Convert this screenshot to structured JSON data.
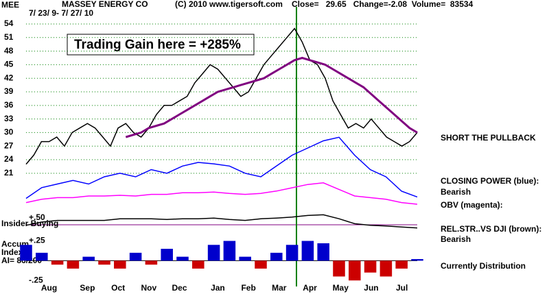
{
  "chart_data": [
    {
      "type": "line",
      "symbol": "MEE",
      "title": "MASSEY ENERGY CO",
      "date_range": "7/ 23/ 9- 7/ 27/ 10",
      "copyright": "(C) 2010 www.tigersoft.com",
      "close_info": "Close=   29.65   Change=-2.08  Volume=  83534",
      "gain_note": "Trading Gain here = +285%",
      "annotations": [
        "SHORT THE PULLBACK",
        "CLOSING POWER (blue):",
        "Bearish",
        "OBV (magenta):",
        "REL.STR..VS DJI (brown):",
        "Bearish",
        "Currently Distribution",
        "Insider Buying",
        "+.50",
        "Accum",
        "Index",
        "AI= 86/200"
      ],
      "categories": [
        null,
        null,
        null,
        "Aug",
        null,
        null,
        null,
        null,
        "Sep",
        null,
        null,
        null,
        "Oct",
        null,
        null,
        null,
        "Nov",
        null,
        null,
        null,
        "Dec",
        null,
        null,
        null,
        null,
        "Jan",
        null,
        null,
        null,
        "Feb",
        null,
        null,
        null,
        "Mar",
        null,
        null,
        null,
        "Apr",
        null,
        null,
        null,
        "May",
        null,
        null,
        null,
        "Jun",
        null,
        null,
        null,
        "Jul",
        null,
        null
      ],
      "series": [
        {
          "color": "#000000",
          "values": [
            23,
            25,
            28,
            28,
            29,
            27,
            30,
            31,
            32,
            31,
            29,
            27,
            31,
            32,
            30,
            29,
            31,
            34,
            36,
            36,
            37,
            38,
            41,
            43,
            45,
            44,
            42,
            40,
            38,
            39,
            42,
            45,
            47,
            49,
            51,
            53,
            50,
            46,
            45,
            42,
            37,
            34,
            31,
            32,
            31,
            33,
            31,
            29,
            28,
            27,
            28,
            30
          ]
        },
        {
          "color": "#800080",
          "values": [
            null,
            null,
            null,
            null,
            null,
            null,
            null,
            null,
            null,
            null,
            null,
            null,
            null,
            29,
            29.5,
            30,
            31,
            31.5,
            32,
            33,
            34,
            35,
            36,
            37,
            38,
            39,
            39.5,
            40,
            40.5,
            41,
            41.5,
            42,
            43,
            44,
            45,
            46,
            46.5,
            46,
            45.5,
            45,
            44,
            43,
            42,
            41,
            40,
            38.5,
            37,
            35.5,
            34,
            32.5,
            31,
            30
          ]
        }
      ],
      "ylim": [
        18.4,
        59.3
      ],
      "yticks": [
        21,
        24,
        27,
        30,
        33,
        36,
        39,
        42,
        45,
        48,
        51,
        54
      ],
      "grid": true
    },
    {
      "type": "line",
      "color": "#0000ff",
      "ylim": [
        0,
        100
      ],
      "values": [
        10,
        25,
        30,
        35,
        30,
        40,
        45,
        40,
        50,
        45,
        55,
        60,
        58,
        55,
        45,
        40,
        55,
        70,
        80,
        90,
        95,
        70,
        50,
        40,
        20,
        12
      ]
    },
    {
      "type": "line",
      "color": "#ff00ff",
      "ylim": [
        0,
        100
      ],
      "values": [
        30,
        40,
        45,
        45,
        50,
        50,
        52,
        50,
        55,
        55,
        60,
        60,
        62,
        58,
        55,
        58,
        65,
        75,
        85,
        90,
        70,
        50,
        45,
        40,
        30,
        25
      ]
    },
    {
      "type": "line",
      "color": "#000000",
      "ylim": [
        0,
        100
      ],
      "values": [
        40,
        50,
        55,
        55,
        55,
        55,
        60,
        60,
        60,
        58,
        60,
        60,
        62,
        58,
        55,
        60,
        62,
        65,
        70,
        72,
        60,
        45,
        40,
        38,
        35,
        32
      ]
    },
    {
      "type": "bar",
      "pos_color": "#0000cc",
      "neg_color": "#cc0000",
      "ylim": [
        -0.3,
        0.35
      ],
      "yticks": [
        {
          "value": 0.25,
          "label": "+.25"
        },
        {
          "value": -0.25,
          "label": "-.25"
        }
      ],
      "values": [
        0.2,
        0.1,
        -0.05,
        -0.1,
        0.05,
        -0.05,
        -0.1,
        0.1,
        -0.05,
        0.15,
        0.05,
        -0.1,
        0.2,
        0.25,
        0.05,
        -0.1,
        0.1,
        0.2,
        0.25,
        0.22,
        -0.2,
        -0.25,
        -0.15,
        -0.2,
        -0.1,
        0.02
      ]
    }
  ]
}
